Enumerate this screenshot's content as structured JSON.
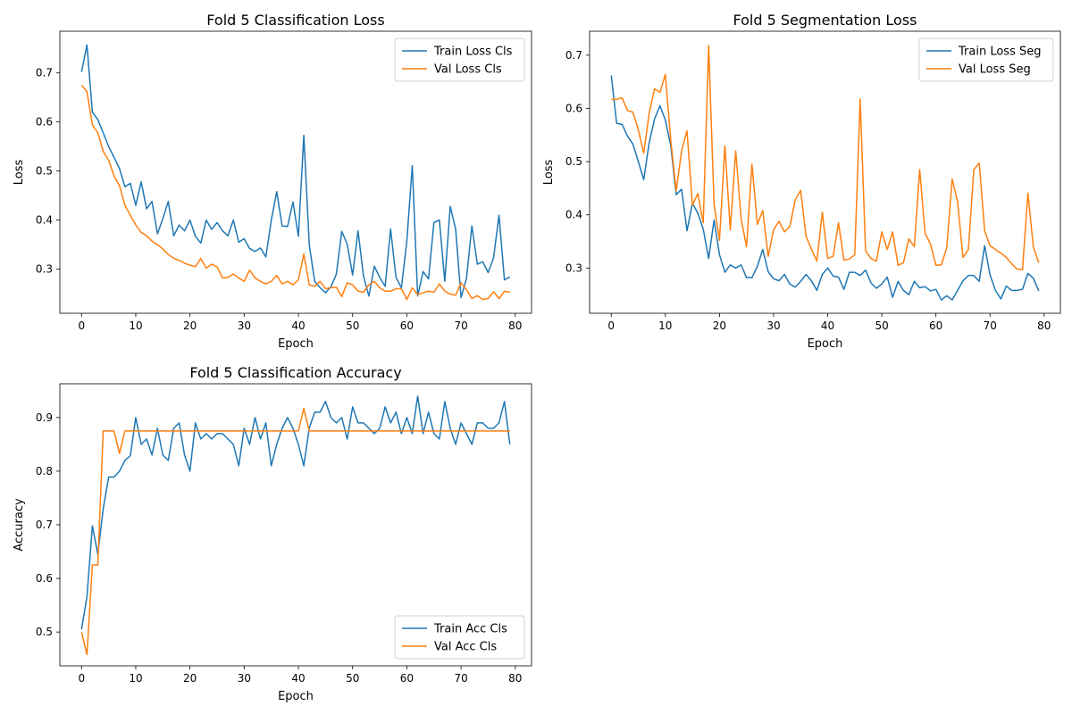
{
  "chart_data": [
    {
      "type": "line",
      "title": "Fold 5 Classification Loss",
      "xlabel": "Epoch",
      "ylabel": "Loss",
      "xlim": [
        -4,
        83
      ],
      "ylim": [
        0.21,
        0.785
      ],
      "xticks": [
        0,
        10,
        20,
        30,
        40,
        50,
        60,
        70,
        80
      ],
      "yticks": [
        0.3,
        0.4,
        0.5,
        0.6,
        0.7
      ],
      "legend_position": "top-right",
      "series": [
        {
          "name": "Train Loss Cls",
          "color": "#1f77b4",
          "values": [
            0.702,
            0.757,
            0.62,
            0.605,
            0.578,
            0.55,
            0.528,
            0.505,
            0.468,
            0.475,
            0.43,
            0.478,
            0.423,
            0.438,
            0.372,
            0.403,
            0.438,
            0.368,
            0.39,
            0.378,
            0.4,
            0.367,
            0.353,
            0.4,
            0.381,
            0.395,
            0.378,
            0.368,
            0.4,
            0.355,
            0.362,
            0.342,
            0.336,
            0.343,
            0.325,
            0.4,
            0.458,
            0.388,
            0.387,
            0.437,
            0.367,
            0.573,
            0.35,
            0.275,
            0.262,
            0.252,
            0.264,
            0.29,
            0.377,
            0.351,
            0.288,
            0.378,
            0.286,
            0.245,
            0.306,
            0.283,
            0.265,
            0.382,
            0.283,
            0.262,
            0.357,
            0.511,
            0.245,
            0.295,
            0.28,
            0.395,
            0.4,
            0.275,
            0.428,
            0.382,
            0.242,
            0.281,
            0.388,
            0.31,
            0.315,
            0.293,
            0.323,
            0.41,
            0.278,
            0.284
          ]
        },
        {
          "name": "Val Loss Cls",
          "color": "#ff7f0e",
          "values": [
            0.675,
            0.662,
            0.594,
            0.578,
            0.54,
            0.522,
            0.49,
            0.47,
            0.43,
            0.41,
            0.39,
            0.375,
            0.368,
            0.357,
            0.35,
            0.341,
            0.33,
            0.322,
            0.318,
            0.312,
            0.308,
            0.305,
            0.322,
            0.302,
            0.31,
            0.305,
            0.282,
            0.283,
            0.29,
            0.282,
            0.275,
            0.298,
            0.282,
            0.275,
            0.27,
            0.275,
            0.287,
            0.27,
            0.275,
            0.268,
            0.278,
            0.331,
            0.268,
            0.265,
            0.275,
            0.26,
            0.262,
            0.263,
            0.244,
            0.272,
            0.268,
            0.255,
            0.253,
            0.268,
            0.275,
            0.262,
            0.255,
            0.255,
            0.26,
            0.26,
            0.238,
            0.262,
            0.248,
            0.252,
            0.255,
            0.253,
            0.27,
            0.255,
            0.249,
            0.247,
            0.272,
            0.258,
            0.24,
            0.246,
            0.238,
            0.24,
            0.254,
            0.24,
            0.255,
            0.253
          ]
        }
      ]
    },
    {
      "type": "line",
      "title": "Fold 5 Segmentation Loss",
      "xlabel": "Epoch",
      "ylabel": "Loss",
      "xlim": [
        -4,
        83
      ],
      "ylim": [
        0.215,
        0.745
      ],
      "xticks": [
        0,
        10,
        20,
        30,
        40,
        50,
        60,
        70,
        80
      ],
      "yticks": [
        0.3,
        0.4,
        0.5,
        0.6,
        0.7
      ],
      "legend_position": "top-right",
      "series": [
        {
          "name": "Train Loss Seg",
          "color": "#1f77b4",
          "values": [
            0.662,
            0.572,
            0.57,
            0.548,
            0.533,
            0.5,
            0.466,
            0.535,
            0.58,
            0.605,
            0.578,
            0.53,
            0.438,
            0.448,
            0.37,
            0.422,
            0.403,
            0.373,
            0.318,
            0.39,
            0.325,
            0.292,
            0.306,
            0.3,
            0.306,
            0.282,
            0.282,
            0.303,
            0.335,
            0.293,
            0.28,
            0.276,
            0.288,
            0.27,
            0.264,
            0.275,
            0.288,
            0.276,
            0.258,
            0.288,
            0.3,
            0.285,
            0.283,
            0.26,
            0.292,
            0.292,
            0.286,
            0.296,
            0.272,
            0.262,
            0.27,
            0.283,
            0.245,
            0.275,
            0.258,
            0.25,
            0.275,
            0.263,
            0.265,
            0.257,
            0.26,
            0.24,
            0.248,
            0.24,
            0.258,
            0.276,
            0.286,
            0.286,
            0.275,
            0.342,
            0.287,
            0.258,
            0.242,
            0.266,
            0.258,
            0.258,
            0.26,
            0.29,
            0.281,
            0.257
          ]
        },
        {
          "name": "Val Loss Seg",
          "color": "#ff7f0e",
          "values": [
            0.617,
            0.617,
            0.62,
            0.596,
            0.593,
            0.56,
            0.516,
            0.59,
            0.637,
            0.63,
            0.664,
            0.54,
            0.445,
            0.52,
            0.558,
            0.418,
            0.44,
            0.385,
            0.718,
            0.42,
            0.352,
            0.53,
            0.372,
            0.52,
            0.393,
            0.34,
            0.495,
            0.382,
            0.408,
            0.322,
            0.372,
            0.388,
            0.368,
            0.378,
            0.428,
            0.446,
            0.36,
            0.335,
            0.313,
            0.405,
            0.318,
            0.322,
            0.385,
            0.315,
            0.317,
            0.325,
            0.618,
            0.332,
            0.318,
            0.313,
            0.368,
            0.335,
            0.368,
            0.305,
            0.31,
            0.355,
            0.34,
            0.485,
            0.365,
            0.345,
            0.305,
            0.306,
            0.338,
            0.467,
            0.425,
            0.32,
            0.335,
            0.485,
            0.497,
            0.37,
            0.342,
            0.335,
            0.328,
            0.32,
            0.308,
            0.298,
            0.297,
            0.441,
            0.34,
            0.31
          ]
        }
      ]
    },
    {
      "type": "line",
      "title": "Fold 5 Classification Accuracy",
      "xlabel": "Epoch",
      "ylabel": "Accuracy",
      "xlim": [
        -4,
        83
      ],
      "ylim": [
        0.437,
        0.963
      ],
      "xticks": [
        0,
        10,
        20,
        30,
        40,
        50,
        60,
        70,
        80
      ],
      "yticks": [
        0.5,
        0.6,
        0.7,
        0.8,
        0.9
      ],
      "legend_position": "bottom-right",
      "series": [
        {
          "name": "Train Acc Cls",
          "color": "#1f77b4",
          "values": [
            0.505,
            0.566,
            0.698,
            0.645,
            0.73,
            0.789,
            0.789,
            0.8,
            0.82,
            0.829,
            0.9,
            0.85,
            0.86,
            0.83,
            0.88,
            0.83,
            0.82,
            0.88,
            0.89,
            0.83,
            0.8,
            0.89,
            0.86,
            0.87,
            0.86,
            0.87,
            0.87,
            0.86,
            0.85,
            0.81,
            0.88,
            0.85,
            0.9,
            0.86,
            0.89,
            0.81,
            0.85,
            0.88,
            0.9,
            0.88,
            0.85,
            0.81,
            0.88,
            0.91,
            0.91,
            0.93,
            0.9,
            0.89,
            0.9,
            0.86,
            0.92,
            0.89,
            0.89,
            0.88,
            0.87,
            0.88,
            0.92,
            0.89,
            0.91,
            0.87,
            0.9,
            0.87,
            0.94,
            0.87,
            0.91,
            0.87,
            0.86,
            0.93,
            0.88,
            0.85,
            0.89,
            0.87,
            0.85,
            0.89,
            0.89,
            0.88,
            0.88,
            0.89,
            0.93,
            0.85
          ]
        },
        {
          "name": "Val Acc Cls",
          "color": "#ff7f0e",
          "values": [
            0.5,
            0.458,
            0.625,
            0.625,
            0.875,
            0.875,
            0.875,
            0.833,
            0.875,
            0.875,
            0.875,
            0.875,
            0.875,
            0.875,
            0.875,
            0.875,
            0.875,
            0.875,
            0.875,
            0.875,
            0.875,
            0.875,
            0.875,
            0.875,
            0.875,
            0.875,
            0.875,
            0.875,
            0.875,
            0.875,
            0.875,
            0.875,
            0.875,
            0.875,
            0.875,
            0.875,
            0.875,
            0.875,
            0.875,
            0.875,
            0.875,
            0.917,
            0.875,
            0.875,
            0.875,
            0.875,
            0.875,
            0.875,
            0.875,
            0.875,
            0.875,
            0.875,
            0.875,
            0.875,
            0.875,
            0.875,
            0.875,
            0.875,
            0.875,
            0.875,
            0.875,
            0.875,
            0.875,
            0.875,
            0.875,
            0.875,
            0.875,
            0.875,
            0.875,
            0.875,
            0.875,
            0.875,
            0.875,
            0.875,
            0.875,
            0.875,
            0.875,
            0.875,
            0.875,
            0.875
          ]
        }
      ]
    }
  ]
}
